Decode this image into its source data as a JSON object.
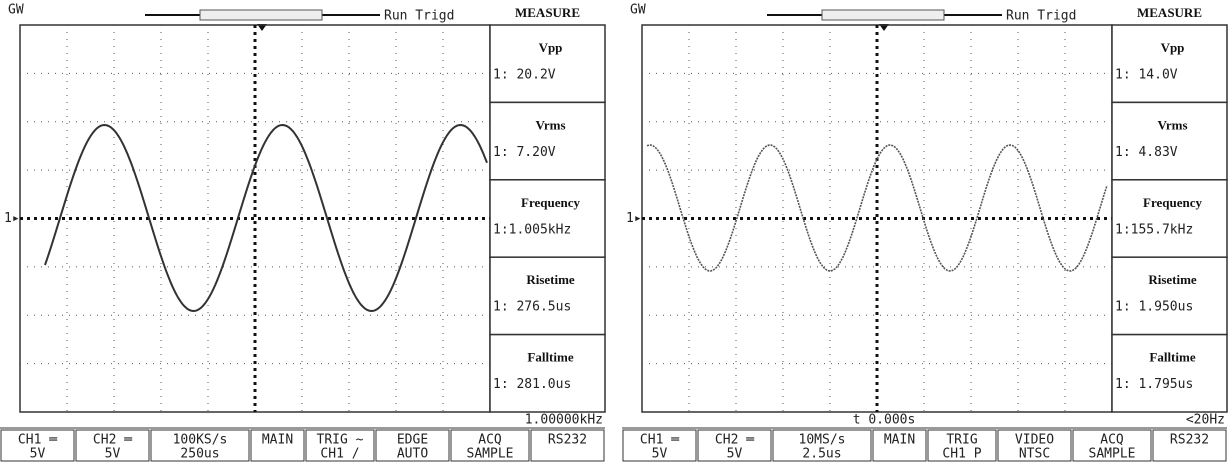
{
  "screens": [
    {
      "logo": "GW",
      "status": "Run Trigd",
      "channel_marker": "1▸",
      "menu": {
        "title": "MEASURE",
        "items": [
          {
            "name": "Vpp",
            "value": "1: 20.2V"
          },
          {
            "name": "Vrms",
            "value": "1: 7.20V"
          },
          {
            "name": "Frequency",
            "value": "1:1.005kHz"
          },
          {
            "name": "Risetime",
            "value": "1: 276.5us"
          },
          {
            "name": "Falltime",
            "value": "1: 281.0us"
          }
        ]
      },
      "frequency_readout": "1.00000kHz",
      "bottom_bar": [
        [
          "CH1 ═",
          "5V"
        ],
        [
          "CH2 ═",
          "5V"
        ],
        [
          "100KS/s",
          "250us"
        ],
        [
          "MAIN"
        ],
        [
          "TRIG ~",
          "CH1 /"
        ],
        [
          "EDGE",
          "AUTO"
        ],
        [
          "ACQ",
          "SAMPLE"
        ],
        [
          "RS232"
        ]
      ]
    },
    {
      "logo": "GW",
      "status": "Run Trigd",
      "channel_marker": "1▸",
      "menu": {
        "title": "MEASURE",
        "items": [
          {
            "name": "Vpp",
            "value": "1: 14.0V"
          },
          {
            "name": "Vrms",
            "value": "1: 4.83V"
          },
          {
            "name": "Frequency",
            "value": "1:155.7kHz"
          },
          {
            "name": "Risetime",
            "value": "1: 1.950us"
          },
          {
            "name": "Falltime",
            "value": "1: 1.795us"
          }
        ]
      },
      "time_readout": "t 0.000s",
      "frequency_readout": "<20Hz",
      "bottom_bar": [
        [
          "CH1 ═",
          "5V"
        ],
        [
          "CH2 ═",
          "5V"
        ],
        [
          "10MS/s",
          "2.5us"
        ],
        [
          "MAIN"
        ],
        [
          "TRIG",
          "CH1 P"
        ],
        [
          "VIDEO",
          "NTSC"
        ],
        [
          "ACQ",
          "SAMPLE"
        ],
        [
          "RS232"
        ]
      ]
    }
  ]
}
